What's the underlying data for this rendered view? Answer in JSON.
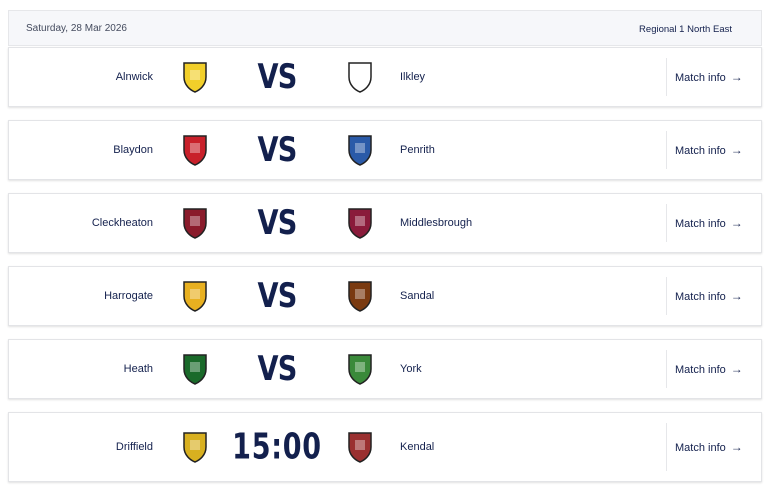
{
  "header": {
    "date": "Saturday, 28 Mar 2026",
    "competition": "Regional 1 North East"
  },
  "match_info_label": "Match info",
  "matches": [
    {
      "home": "Alnwick",
      "away": "Ilkley",
      "center": "VS",
      "home_color": "#f2cf2a",
      "away_color": "#ffffff"
    },
    {
      "home": "Blaydon",
      "away": "Penrith",
      "center": "VS",
      "home_color": "#c8202a",
      "away_color": "#2a5aa8"
    },
    {
      "home": "Cleckheaton",
      "away": "Middlesbrough",
      "center": "VS",
      "home_color": "#8a1b2b",
      "away_color": "#8a1b3b"
    },
    {
      "home": "Harrogate",
      "away": "Sandal",
      "center": "VS",
      "home_color": "#e8b020",
      "away_color": "#7a3a10"
    },
    {
      "home": "Heath",
      "away": "York",
      "center": "VS",
      "home_color": "#1a6a2a",
      "away_color": "#3a8a3a"
    },
    {
      "home": "Driffield",
      "away": "Kendal",
      "center": "15:00",
      "home_color": "#d8b020",
      "away_color": "#9a3030"
    }
  ]
}
